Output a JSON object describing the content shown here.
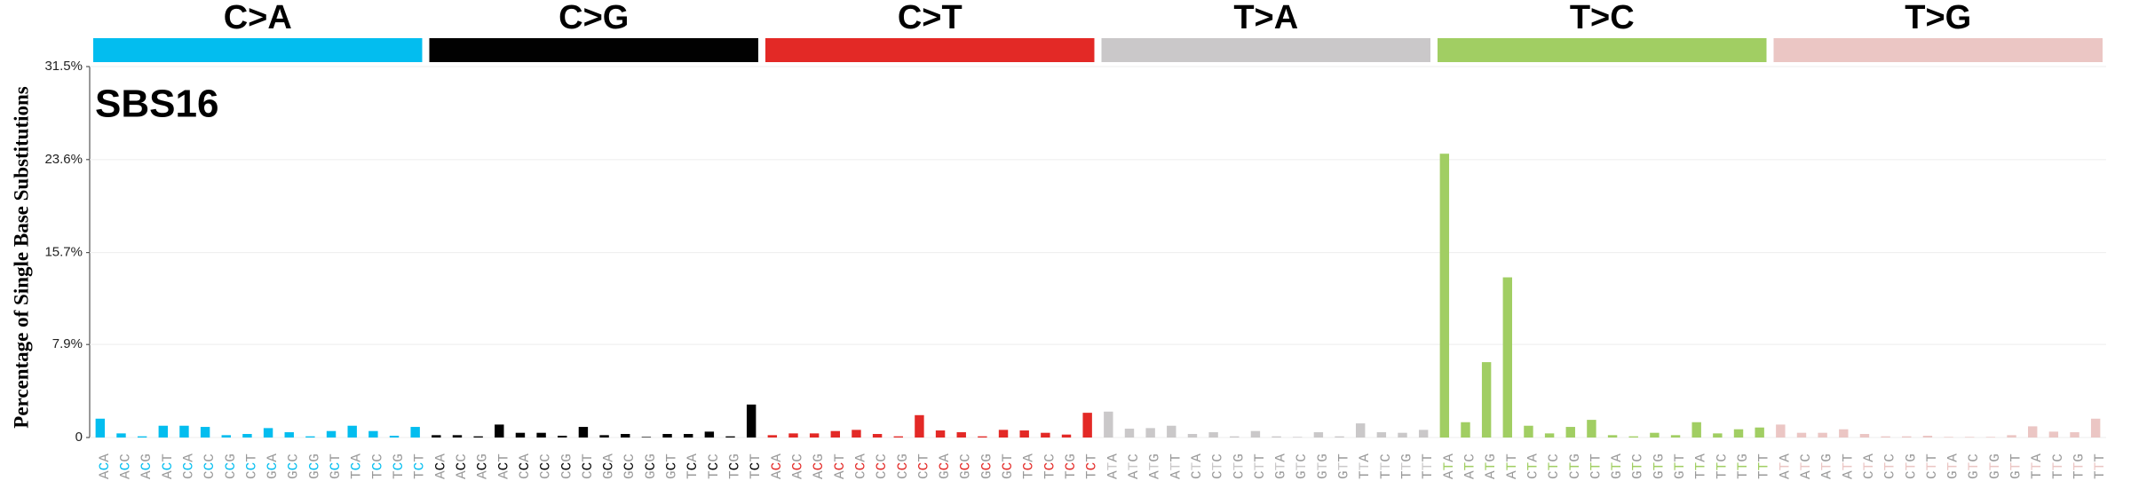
{
  "chart_data": {
    "type": "bar",
    "annotation": "SBS16",
    "y_label": "Percentage of Single Base Substitutions",
    "groups": [
      {
        "name": "C>A",
        "color": "#03bdef"
      },
      {
        "name": "C>G",
        "color": "#010101"
      },
      {
        "name": "C>T",
        "color": "#e32926"
      },
      {
        "name": "T>A",
        "color": "#cac8c9"
      },
      {
        "name": "T>C",
        "color": "#a1ce63"
      },
      {
        "name": "T>G",
        "color": "#ebc6c4"
      }
    ],
    "categories": [
      "ACA",
      "ACC",
      "ACG",
      "ACT",
      "CCA",
      "CCC",
      "CCG",
      "CCT",
      "GCA",
      "GCC",
      "GCG",
      "GCT",
      "TCA",
      "TCC",
      "TCG",
      "TCT",
      "ACA",
      "ACC",
      "ACG",
      "ACT",
      "CCA",
      "CCC",
      "CCG",
      "CCT",
      "GCA",
      "GCC",
      "GCG",
      "GCT",
      "TCA",
      "TCC",
      "TCG",
      "TCT",
      "ACA",
      "ACC",
      "ACG",
      "ACT",
      "CCA",
      "CCC",
      "CCG",
      "CCT",
      "GCA",
      "GCC",
      "GCG",
      "GCT",
      "TCA",
      "TCC",
      "TCG",
      "TCT",
      "ATA",
      "ATC",
      "ATG",
      "ATT",
      "CTA",
      "CTC",
      "CTG",
      "CTT",
      "GTA",
      "GTC",
      "GTG",
      "GTT",
      "TTA",
      "TTC",
      "TTG",
      "TTT",
      "ATA",
      "ATC",
      "ATG",
      "ATT",
      "CTA",
      "CTC",
      "CTG",
      "CTT",
      "GTA",
      "GTC",
      "GTG",
      "GTT",
      "TTA",
      "TTC",
      "TTG",
      "TTT",
      "ATA",
      "ATC",
      "ATG",
      "ATT",
      "CTA",
      "CTC",
      "CTG",
      "CTT",
      "GTA",
      "GTC",
      "GTG",
      "GTT",
      "TTA",
      "TTC",
      "TTG",
      "TTT"
    ],
    "values": [
      1.6,
      0.35,
      0.1,
      1.0,
      1.0,
      0.9,
      0.2,
      0.3,
      0.8,
      0.45,
      0.1,
      0.55,
      1.0,
      0.55,
      0.15,
      0.9,
      0.2,
      0.2,
      0.1,
      1.1,
      0.4,
      0.4,
      0.15,
      0.9,
      0.2,
      0.3,
      0.05,
      0.3,
      0.3,
      0.5,
      0.1,
      2.8,
      0.2,
      0.35,
      0.35,
      0.55,
      0.65,
      0.3,
      0.1,
      1.9,
      0.6,
      0.45,
      0.1,
      0.65,
      0.6,
      0.4,
      0.25,
      2.1,
      2.2,
      0.75,
      0.8,
      1.0,
      0.3,
      0.45,
      0.1,
      0.55,
      0.1,
      0.05,
      0.45,
      0.1,
      1.2,
      0.45,
      0.4,
      0.65,
      24.1,
      1.3,
      6.4,
      13.6,
      1.0,
      0.35,
      0.9,
      1.5,
      0.2,
      0.1,
      0.4,
      0.2,
      1.3,
      0.35,
      0.7,
      0.85,
      1.1,
      0.4,
      0.4,
      0.7,
      0.3,
      0.1,
      0.1,
      0.15,
      0.05,
      0.05,
      0.05,
      0.2,
      0.95,
      0.5,
      0.45,
      1.6
    ],
    "ylim": [
      0,
      31.5
    ],
    "yticks": [
      0,
      {
        "value": 7.9,
        "label": "7.9%"
      },
      {
        "value": 15.7,
        "label": "15.7%"
      },
      {
        "value": 23.6,
        "label": "23.6%"
      },
      {
        "value": 31.5,
        "label": "31.5%"
      }
    ],
    "grid": true
  }
}
